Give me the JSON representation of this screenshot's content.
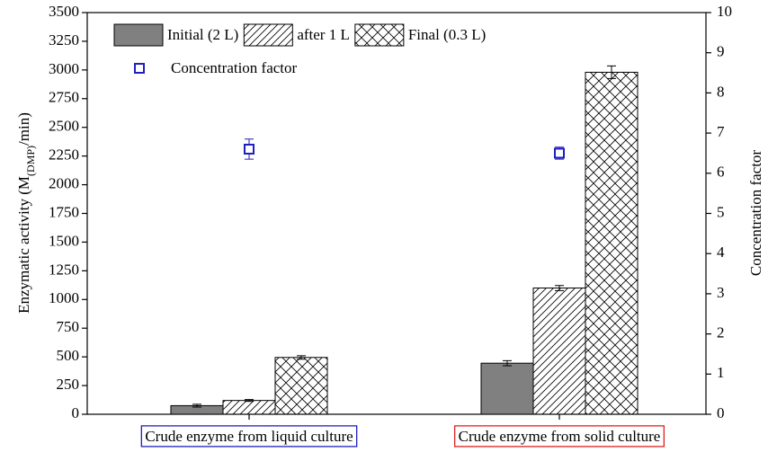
{
  "chart_data": {
    "type": "bar",
    "ylabel_parts": [
      "Enzymatic activity (M",
      "(DMP)",
      "/min)"
    ],
    "y2label": "Concentration factor",
    "categories": [
      "Crude enzyme from liquid culture",
      "Crude enzyme from solid culture"
    ],
    "category_box_colors": [
      "#1f1fbf",
      "#e02020"
    ],
    "series": [
      {
        "name": "Initial (2 L)",
        "color": "#808080",
        "pattern": "solid",
        "values": [
          75,
          445
        ],
        "errors": [
          12,
          22
        ]
      },
      {
        "name": "after 1 L",
        "color": "#000000",
        "pattern": "hatch",
        "values": [
          120,
          1100
        ],
        "errors": [
          8,
          22
        ]
      },
      {
        "name": "Final (0.3 L)",
        "color": "#000000",
        "pattern": "cross",
        "values": [
          495,
          2980
        ],
        "errors": [
          15,
          55
        ]
      },
      {
        "name": "Concentration factor",
        "type": "scatter",
        "axis": "y2",
        "color": "#1f1fbf",
        "values": [
          6.6,
          6.5
        ],
        "errors": [
          0.25,
          0.15
        ]
      }
    ],
    "ylim": [
      0,
      3500
    ],
    "yticks": [
      0,
      250,
      500,
      750,
      1000,
      1250,
      1500,
      1750,
      2000,
      2250,
      2500,
      2750,
      3000,
      3250,
      3500
    ],
    "y2lim": [
      0,
      10
    ],
    "y2ticks": [
      0,
      1,
      2,
      3,
      4,
      5,
      6,
      7,
      8,
      9,
      10
    ],
    "legend": "upper left"
  }
}
